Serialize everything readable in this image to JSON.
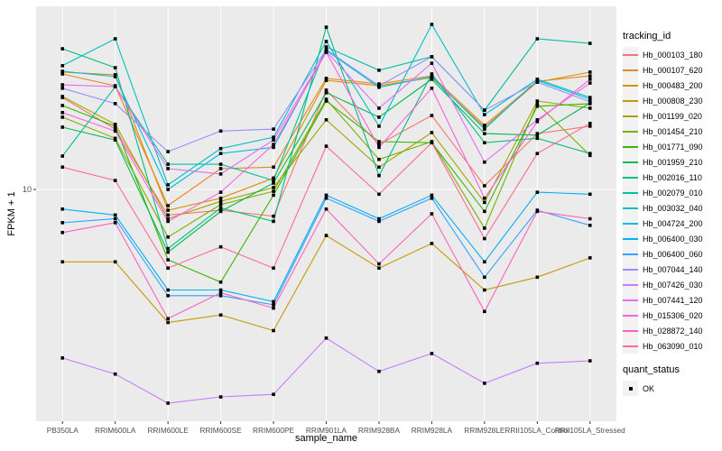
{
  "chart_data": {
    "type": "line",
    "title": "",
    "xlabel": "sample_name",
    "ylabel": "FPKM + 1",
    "y_scale": "log10",
    "y_ticks": [
      10
    ],
    "ylim_log10": [
      -0.06,
      1.85
    ],
    "grid": "on",
    "legend_position": "right",
    "panel_bg": "#EBEBEB",
    "grid_color": "#FFFFFF",
    "tick_label_color": "#4D4D4D",
    "point_shape": "filled-square",
    "point_color": "#000000",
    "categories": [
      "PB350LA",
      "RRIM600LA",
      "RRIM600LE",
      "RRIM600SE",
      "RRIM600PE",
      "RRIM901LA",
      "RRIM928BA",
      "RRIM928LA",
      "RRIM928LE",
      "RRII105LA_Control",
      "RRII105LA_Stressed"
    ],
    "series": [
      {
        "name": "Hb_000103_180",
        "color": "#F8766D",
        "values": [
          26.8,
          19.1,
          7.6,
          8.0,
          7.5,
          29.0,
          16.2,
          22.1,
          10.4,
          18.2,
          19.7
        ]
      },
      {
        "name": "Hb_000107_620",
        "color": "#E88526",
        "values": [
          34.5,
          30.4,
          8.4,
          12.5,
          12.7,
          32.9,
          31.0,
          33.8,
          19.9,
          31.9,
          33.8
        ]
      },
      {
        "name": "Hb_000483_200",
        "color": "#D89000",
        "values": [
          35.2,
          34.2,
          8.0,
          9.1,
          11.3,
          32.2,
          30.4,
          33.2,
          19.5,
          31.6,
          35.2
        ]
      },
      {
        "name": "Hb_000808_230",
        "color": "#C49A00",
        "values": [
          4.6,
          4.6,
          2.4,
          2.6,
          2.2,
          6.1,
          4.3,
          5.6,
          3.4,
          3.9,
          4.8
        ]
      },
      {
        "name": "Hb_001199_020",
        "color": "#A3A500",
        "values": [
          27.1,
          20.1,
          7.3,
          8.8,
          10.2,
          21.1,
          12.7,
          18.4,
          8.7,
          25.8,
          23.9
        ]
      },
      {
        "name": "Hb_001454_210",
        "color": "#7CAE00",
        "values": [
          21.7,
          17.3,
          6.0,
          8.5,
          9.8,
          26.3,
          13.8,
          16.7,
          6.6,
          25.1,
          14.4
        ]
      },
      {
        "name": "Hb_001771_090",
        "color": "#39B600",
        "values": [
          24.6,
          19.7,
          4.7,
          3.7,
          9.4,
          25.8,
          16.7,
          16.5,
          7.9,
          24.4,
          25.1
        ]
      },
      {
        "name": "Hb_001959_210",
        "color": "#00BB4E",
        "values": [
          19.5,
          17.0,
          5.1,
          7.9,
          10.7,
          28.2,
          21.7,
          32.6,
          18.2,
          17.9,
          25.3
        ]
      },
      {
        "name": "Hb_002016_110",
        "color": "#00BF7D",
        "values": [
          45.2,
          36.9,
          5.3,
          8.2,
          7.1,
          57.0,
          11.6,
          34.5,
          16.5,
          17.3,
          14.7
        ]
      },
      {
        "name": "Hb_002079_010",
        "color": "#00C1A3",
        "values": [
          14.3,
          30.1,
          13.1,
          13.1,
          11.0,
          46.1,
          35.9,
          41.5,
          23.4,
          50.3,
          47.9
        ]
      },
      {
        "name": "Hb_003032_040",
        "color": "#00BFC4",
        "values": [
          37.7,
          50.3,
          10.5,
          15.5,
          17.5,
          48.9,
          19.7,
          58.7,
          22.3,
          32.6,
          26.8
        ]
      },
      {
        "name": "Hb_004724_200",
        "color": "#00BAE0",
        "values": [
          35.5,
          33.5,
          10.0,
          14.7,
          15.7,
          44.4,
          29.9,
          33.5,
          19.1,
          32.2,
          26.3
        ]
      },
      {
        "name": "Hb_006400_030",
        "color": "#00B0F6",
        "values": [
          8.1,
          7.6,
          3.4,
          3.4,
          3.0,
          9.4,
          7.3,
          9.4,
          4.6,
          9.7,
          9.5
        ]
      },
      {
        "name": "Hb_006400_060",
        "color": "#35A2FF",
        "values": [
          7.0,
          7.3,
          3.2,
          3.2,
          2.9,
          9.1,
          7.1,
          9.1,
          3.9,
          8.0,
          6.8
        ]
      },
      {
        "name": "Hb_007044_140",
        "color": "#9590FF",
        "values": [
          29.6,
          25.1,
          15.0,
          18.7,
          19.1,
          44.8,
          30.4,
          41.5,
          23.4,
          31.6,
          25.6
        ]
      },
      {
        "name": "Hb_007426_030",
        "color": "#C77CFF",
        "values": [
          1.64,
          1.38,
          1.01,
          1.08,
          1.11,
          2.03,
          1.42,
          1.72,
          1.25,
          1.55,
          1.59
        ]
      },
      {
        "name": "Hb_007441_120",
        "color": "#E76BF3",
        "values": [
          30.7,
          30.1,
          12.5,
          11.8,
          17.0,
          43.9,
          23.9,
          38.7,
          13.4,
          21.1,
          31.3
        ]
      },
      {
        "name": "Hb_015306_020",
        "color": "#FA62DB",
        "values": [
          22.8,
          18.7,
          7.1,
          9.7,
          16.2,
          43.5,
          15.7,
          29.6,
          9.1,
          20.7,
          32.6
        ]
      },
      {
        "name": "Hb_028872_140",
        "color": "#FF62BC",
        "values": [
          6.3,
          7.0,
          2.5,
          3.3,
          2.8,
          8.1,
          4.5,
          7.7,
          2.7,
          7.9,
          7.3
        ]
      },
      {
        "name": "Hb_063090_010",
        "color": "#FF6A98",
        "values": [
          12.7,
          11.0,
          4.3,
          5.4,
          4.3,
          15.9,
          9.5,
          16.5,
          5.9,
          14.7,
          20.3
        ]
      }
    ],
    "legend": {
      "tracking_title": "tracking_id",
      "quant_title": "quant_status",
      "quant_value": "OK"
    }
  }
}
